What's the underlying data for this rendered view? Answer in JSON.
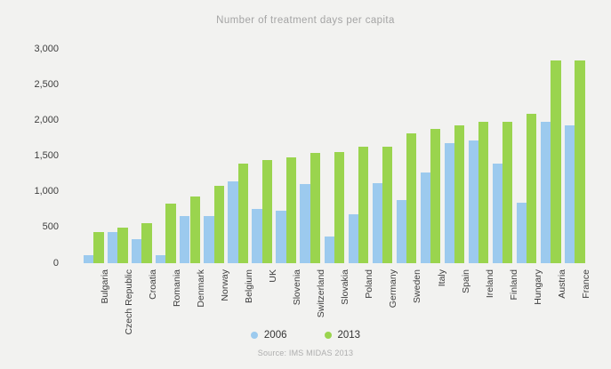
{
  "title": "Number of treatment days per capita",
  "source_caption": "Source: IMS MIDAS 2013",
  "colors": {
    "background": "#F2F2F0",
    "series_2006": "#9CCAEE",
    "series_2013": "#9AD44E",
    "title_text": "#A4A4A4",
    "axis_text": "#3E3E3E",
    "source_text": "#AEAEAE"
  },
  "chart_data": {
    "type": "bar",
    "title": "Number of treatment days per capita",
    "categories": [
      "Bulgaria",
      "Czech Republic",
      "Croatia",
      "Romania",
      "Denmark",
      "Norway",
      "Belgium",
      "UK",
      "Slovenia",
      "Switzerland",
      "Slovakia",
      "Poland",
      "Germany",
      "Sweden",
      "Italy",
      "Spain",
      "Ireland",
      "Finland",
      "Hungary",
      "Austria",
      "France"
    ],
    "series": [
      {
        "name": "2006",
        "color": "#9CCAEE",
        "values": [
          110,
          440,
          340,
          115,
          660,
          660,
          1140,
          760,
          730,
          1110,
          375,
          690,
          1120,
          885,
          1270,
          1680,
          1720,
          1390,
          845,
          1975,
          1935
        ]
      },
      {
        "name": "2013",
        "color": "#9AD44E",
        "values": [
          440,
          500,
          560,
          840,
          935,
          1085,
          1400,
          1445,
          1480,
          1540,
          1560,
          1630,
          1630,
          1820,
          1880,
          1930,
          1980,
          1980,
          2095,
          2840,
          2840
        ]
      }
    ],
    "xlabel": "",
    "ylabel": "",
    "ylim": [
      0,
      3000
    ],
    "ytick_step": 500,
    "ytick_labels": [
      "0",
      "500",
      "1,000",
      "1,500",
      "2,000",
      "2,500",
      "3,000"
    ],
    "grid": false,
    "legend_position": "bottom",
    "source": "Source: IMS MIDAS 2013"
  }
}
